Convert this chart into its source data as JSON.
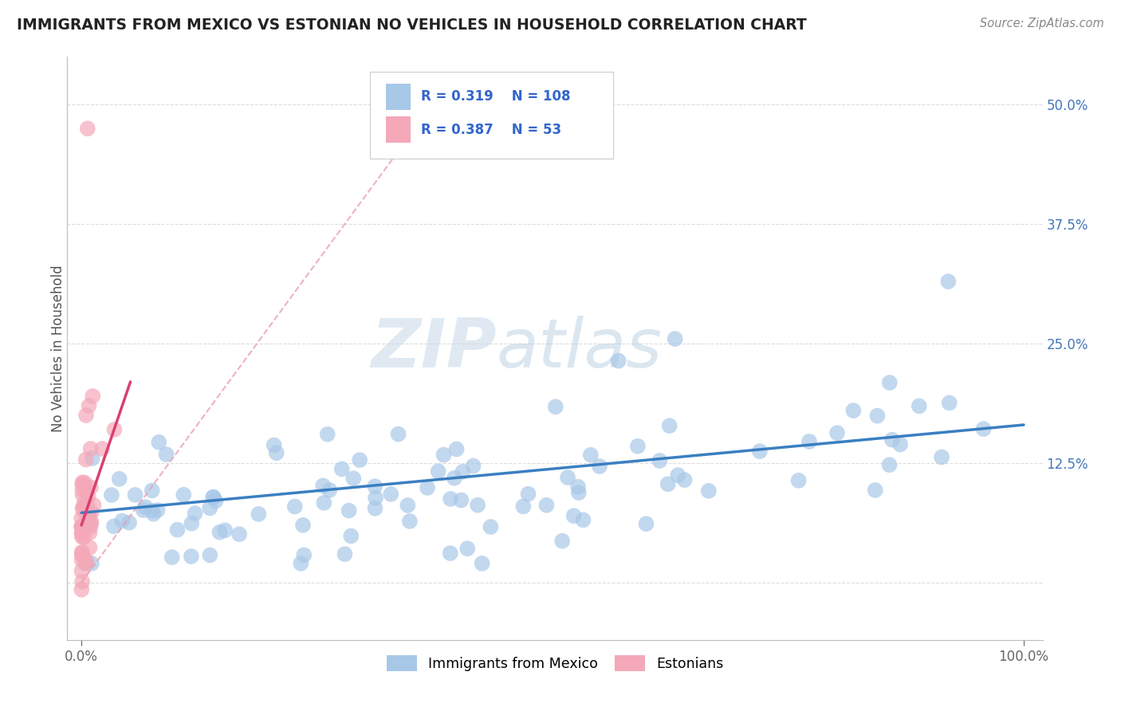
{
  "title": "IMMIGRANTS FROM MEXICO VS ESTONIAN NO VEHICLES IN HOUSEHOLD CORRELATION CHART",
  "source": "Source: ZipAtlas.com",
  "ylabel": "No Vehicles in Household",
  "legend_blue_label": "Immigrants from Mexico",
  "legend_pink_label": "Estonians",
  "watermark_zip": "ZIP",
  "watermark_atlas": "atlas",
  "blue_R": 0.319,
  "blue_N": 108,
  "pink_R": 0.387,
  "pink_N": 53,
  "blue_color": "#a8c8e8",
  "pink_color": "#f4a8b8",
  "blue_line_color": "#3a7fc1",
  "pink_line_color": "#d94070",
  "pink_dash_color": "#e8a0b0",
  "title_color": "#222222",
  "source_color": "#888888",
  "ytick_color": "#4477bb",
  "xtick_color": "#666666",
  "grid_color": "#dddddd",
  "background_color": "#ffffff",
  "ytick_vals": [
    0.0,
    0.125,
    0.25,
    0.375,
    0.5
  ],
  "xlim": [
    -0.015,
    1.02
  ],
  "ylim": [
    -0.06,
    0.55
  ]
}
